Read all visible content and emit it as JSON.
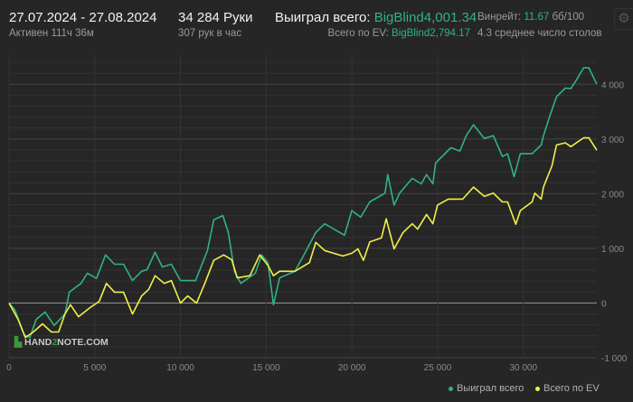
{
  "header": {
    "date_range": "27.07.2024 - 27.08.2024",
    "active": "Активен 111ч 36м",
    "hands": "34 284 Руки",
    "hands_per_hour": "307 рук в час",
    "won_label": "Выиграл всего:",
    "won_value": "BigBlind4,001.34",
    "ev_label": "Всего по EV:",
    "ev_value": "BigBlind2,794.17",
    "winrate_label": "Винрейт:",
    "winrate_value": "11.67",
    "winrate_unit": "бб/100",
    "tables": "4.3 среднее число столов",
    "settings_icon": "gear-icon"
  },
  "watermark": "HAND2NOTE.COM",
  "colors": {
    "won": "#2fb37f",
    "ev": "#f2f04a",
    "background": "#262626"
  },
  "chart_data": {
    "type": "line",
    "xlim": [
      0,
      34284
    ],
    "ylim": [
      -1000,
      4550
    ],
    "x_ticks": [
      {
        "v": 0,
        "label": "0"
      },
      {
        "v": 5000,
        "label": "5 000"
      },
      {
        "v": 10000,
        "label": "10 000"
      },
      {
        "v": 15000,
        "label": "15 000"
      },
      {
        "v": 20000,
        "label": "20 000"
      },
      {
        "v": 25000,
        "label": "25 000"
      },
      {
        "v": 30000,
        "label": "30 000"
      }
    ],
    "y_ticks": [
      {
        "v": -1000,
        "label": "-1 000"
      },
      {
        "v": 0,
        "label": "0"
      },
      {
        "v": 1000,
        "label": "1 000"
      },
      {
        "v": 2000,
        "label": "2 000"
      },
      {
        "v": 3000,
        "label": "3 000"
      },
      {
        "v": 4000,
        "label": "4 000"
      }
    ],
    "grid": true,
    "legend": "bottom-right",
    "series": [
      {
        "name": "Выиграл всего",
        "color": "#2fb37f",
        "x": [
          0,
          350,
          880,
          1220,
          1580,
          2100,
          2630,
          3260,
          3520,
          4200,
          4570,
          5100,
          5630,
          6150,
          6680,
          7200,
          7730,
          8050,
          8520,
          8940,
          9470,
          10000,
          10880,
          11570,
          11940,
          12470,
          12790,
          13150,
          13520,
          14360,
          14730,
          15100,
          15420,
          15780,
          16670,
          17200,
          17890,
          18410,
          19570,
          19990,
          20510,
          21040,
          21930,
          22090,
          22460,
          22780,
          23520,
          24040,
          24350,
          24720,
          24880,
          25770,
          26300,
          26670,
          27090,
          27720,
          28250,
          28770,
          29080,
          29460,
          29820,
          30510,
          31040,
          31170,
          31560,
          31930,
          32450,
          32770,
          33140,
          33510,
          33820,
          34284
        ],
        "y": [
          0,
          -130,
          -580,
          -630,
          -300,
          -165,
          -410,
          -200,
          200,
          360,
          545,
          450,
          880,
          710,
          710,
          410,
          580,
          610,
          930,
          660,
          710,
          410,
          410,
          960,
          1520,
          1600,
          1290,
          580,
          360,
          545,
          880,
          740,
          -30,
          460,
          580,
          880,
          1290,
          1450,
          1240,
          1690,
          1570,
          1850,
          2010,
          2350,
          1790,
          2010,
          2280,
          2180,
          2350,
          2180,
          2560,
          2840,
          2780,
          3060,
          3260,
          3010,
          3060,
          2680,
          2730,
          2310,
          2730,
          2730,
          2890,
          3060,
          3440,
          3770,
          3930,
          3920,
          4100,
          4300,
          4300,
          4001
        ]
      },
      {
        "name": "Всего по EV",
        "color": "#f2f04a",
        "x": [
          0,
          530,
          950,
          1420,
          1950,
          2470,
          2890,
          3260,
          3580,
          4050,
          4740,
          5260,
          5680,
          6150,
          6680,
          7200,
          7730,
          8150,
          8520,
          9050,
          9470,
          10000,
          10420,
          10940,
          11420,
          11940,
          12520,
          12990,
          13310,
          14050,
          14620,
          15100,
          15420,
          15780,
          16670,
          17520,
          17890,
          18410,
          19470,
          19990,
          20350,
          20670,
          21040,
          21720,
          22000,
          22460,
          22980,
          23520,
          23830,
          24350,
          24720,
          24990,
          25620,
          26460,
          27090,
          27720,
          28250,
          28770,
          29080,
          29560,
          29820,
          30510,
          30670,
          31040,
          31170,
          31670,
          31930,
          32450,
          32770,
          33510,
          33820,
          34284
        ],
        "y": [
          0,
          -300,
          -630,
          -530,
          -380,
          -530,
          -530,
          -200,
          -30,
          -250,
          -80,
          30,
          360,
          200,
          200,
          -200,
          130,
          250,
          500,
          360,
          410,
          0,
          130,
          0,
          360,
          780,
          880,
          790,
          460,
          500,
          880,
          690,
          500,
          580,
          580,
          740,
          1110,
          960,
          860,
          910,
          990,
          780,
          1120,
          1190,
          1540,
          990,
          1290,
          1450,
          1350,
          1620,
          1450,
          1790,
          1900,
          1900,
          2120,
          1950,
          2010,
          1850,
          1850,
          1440,
          1690,
          1850,
          2010,
          1900,
          2120,
          2510,
          2890,
          2930,
          2860,
          3020,
          3020,
          2794
        ]
      }
    ]
  }
}
